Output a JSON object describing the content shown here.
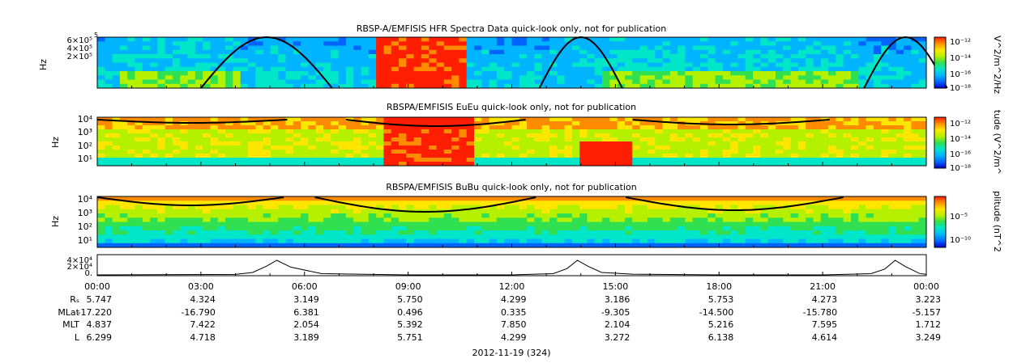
{
  "panels": [
    {
      "title": "RBSP-A/EMFISIS  HFR Spectra Data quick-look only, not for publication",
      "ylabel": "Hz",
      "yticks": [
        "6×10⁵",
        "4×10⁵",
        "2×10⁵"
      ],
      "ytick_top": "5",
      "colorbar_label": "V^2/m^2/Hz",
      "colorbar_ticks": [
        "10⁻¹²",
        "10⁻¹⁴",
        "10⁻¹⁶",
        "10⁻¹⁸"
      ]
    },
    {
      "title": "RBSPA/EMFISIS  EuEu quick-look only, not for publication",
      "ylabel": "Hz",
      "yticks": [
        "10⁴",
        "10³",
        "10²",
        "10¹"
      ],
      "colorbar_label": "tude (V^2/m^",
      "colorbar_ticks": [
        "10⁻¹²",
        "10⁻¹⁴",
        "10⁻¹⁶",
        "10⁻¹⁸"
      ]
    },
    {
      "title": "RBSPA/EMFISIS  BuBu quick-look only, not for publication",
      "ylabel": "Hz",
      "yticks": [
        "10⁴",
        "10³",
        "10²",
        "10¹"
      ],
      "colorbar_label": "plitude (nT^2",
      "colorbar_ticks": [
        "10⁻⁵",
        "10⁻¹⁰"
      ]
    },
    {
      "yticks": [
        "4×10⁴",
        "2×10⁴",
        "0."
      ]
    }
  ],
  "ephemeris": {
    "row_labels": [
      "Rₛ",
      "MLat",
      "MLT",
      "L"
    ],
    "times": [
      "00:00",
      "03:00",
      "06:00",
      "09:00",
      "12:00",
      "15:00",
      "18:00",
      "21:00",
      "00:00"
    ],
    "rows": [
      [
        "5.747",
        "4.324",
        "3.149",
        "5.750",
        "4.299",
        "3.186",
        "5.753",
        "4.273",
        "3.223"
      ],
      [
        "-17.220",
        "-16.790",
        "6.381",
        "0.496",
        "0.335",
        "-9.305",
        "-14.500",
        "-15.780",
        "-5.157"
      ],
      [
        "4.837",
        "7.422",
        "2.054",
        "5.392",
        "7.850",
        "2.104",
        "5.216",
        "7.595",
        "1.712"
      ],
      [
        "6.299",
        "4.718",
        "3.189",
        "5.751",
        "4.299",
        "3.272",
        "6.138",
        "4.614",
        "3.249"
      ]
    ]
  },
  "date_label": "2012-11-19 (324)",
  "chart_data": {
    "type": "heatmap",
    "x_axis_ticks": [
      "00:00",
      "03:00",
      "06:00",
      "09:00",
      "12:00",
      "15:00",
      "18:00",
      "21:00",
      "00:00"
    ],
    "line_panel": {
      "type": "line",
      "ylim": [
        0,
        40000
      ],
      "x_hours": [
        0,
        4,
        4.5,
        4.9,
        5.2,
        5.6,
        6.5,
        9,
        12,
        13.2,
        13.6,
        13.9,
        14.2,
        14.6,
        15.5,
        18,
        21,
        22.4,
        22.8,
        23.1,
        23.4,
        23.8,
        24
      ],
      "y": [
        0,
        1000,
        5000,
        18000,
        30000,
        16000,
        2500,
        0,
        0,
        2500,
        13000,
        30000,
        18000,
        5000,
        1500,
        0,
        0,
        2500,
        12000,
        30000,
        17000,
        3000,
        1000
      ]
    },
    "colors": {
      "spectrum": [
        "#0000c8",
        "#0064ff",
        "#00b4ff",
        "#00e6c8",
        "#30e050",
        "#b4f000",
        "#ffe600",
        "#ff8c00",
        "#ff1e00"
      ]
    }
  }
}
